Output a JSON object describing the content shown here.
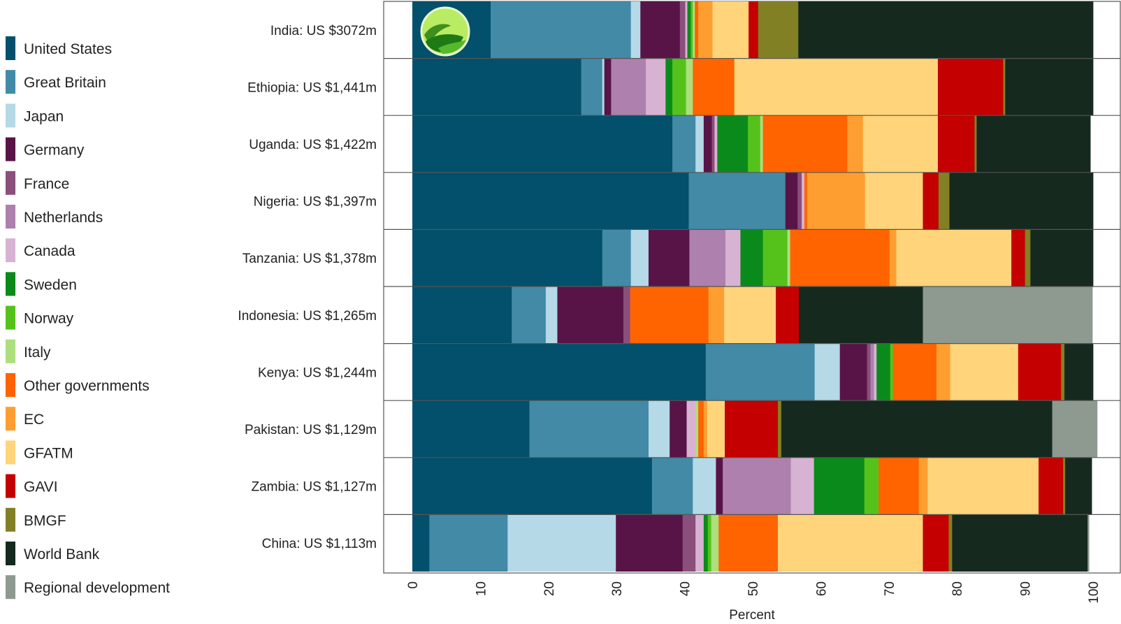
{
  "chart_data": {
    "type": "bar",
    "orientation": "horizontal",
    "stacked": true,
    "xlabel": "Percent",
    "xlim": [
      0,
      100
    ],
    "xticks": [
      "0",
      "10",
      "20",
      "30",
      "40",
      "50",
      "60",
      "70",
      "80",
      "90",
      "100"
    ],
    "legend_placement": "left",
    "legend": [
      {
        "name": "United States",
        "color": "#02506b"
      },
      {
        "name": "Great Britain",
        "color": "#428aa6"
      },
      {
        "name": "Japan",
        "color": "#b5d9e6"
      },
      {
        "name": "Germany",
        "color": "#581446"
      },
      {
        "name": "France",
        "color": "#8b4f7c"
      },
      {
        "name": "Netherlands",
        "color": "#ad80ad"
      },
      {
        "name": "Canada",
        "color": "#d8b2d2"
      },
      {
        "name": "Sweden",
        "color": "#0b8a1c"
      },
      {
        "name": "Norway",
        "color": "#55c21c"
      },
      {
        "name": "Italy",
        "color": "#acdf7d"
      },
      {
        "name": "Other governments",
        "color": "#ff6400"
      },
      {
        "name": "EC",
        "color": "#ff9e30"
      },
      {
        "name": "GFATM",
        "color": "#ffd47a"
      },
      {
        "name": "GAVI",
        "color": "#c40000"
      },
      {
        "name": "BMGF",
        "color": "#828024"
      },
      {
        "name": "World Bank",
        "color": "#16291e"
      },
      {
        "name": "Regional development",
        "color": "#8e9990"
      }
    ],
    "categories": [
      "India: US $3072m",
      "Ethiopia: US $1,441m",
      "Uganda: US $1,422m",
      "Nigeria: US $1,397m",
      "Tanzania: US $1,378m",
      "Indonesia: US $1,265m",
      "Kenya: US $1,244m",
      "Pakistan: US $1,129m",
      "Zambia: US $1,127m",
      "China: US $1,113m"
    ],
    "series": [
      {
        "name": "United States",
        "values": [
          11.5,
          24.8,
          38.2,
          40.6,
          27.9,
          14.6,
          43.1,
          17.2,
          35.2,
          2.5
        ]
      },
      {
        "name": "Great Britain",
        "values": [
          20.6,
          3.1,
          3.4,
          14.2,
          4.2,
          5.0,
          16.0,
          17.5,
          6.0,
          11.5
        ]
      },
      {
        "name": "Japan",
        "values": [
          1.4,
          0.3,
          1.2,
          0.0,
          2.6,
          1.7,
          3.7,
          3.1,
          3.4,
          15.9
        ]
      },
      {
        "name": "Germany",
        "values": [
          5.8,
          1.0,
          1.2,
          1.8,
          6.0,
          9.7,
          4.0,
          2.5,
          1.0,
          9.8
        ]
      },
      {
        "name": "France",
        "values": [
          0.8,
          0.0,
          0.4,
          0.6,
          0.0,
          1.0,
          0.5,
          0.0,
          0.0,
          1.9
        ]
      },
      {
        "name": "Netherlands",
        "values": [
          0.0,
          5.1,
          0.0,
          0.0,
          5.3,
          0.0,
          0.5,
          0.0,
          10.0,
          0.0
        ]
      },
      {
        "name": "Canada",
        "values": [
          0.3,
          2.9,
          0.4,
          0.4,
          2.2,
          0.0,
          0.4,
          1.3,
          3.4,
          1.2
        ]
      },
      {
        "name": "Sweden",
        "values": [
          0.5,
          1.0,
          4.5,
          0.0,
          3.3,
          0.0,
          2.0,
          0.0,
          7.4,
          0.6
        ]
      },
      {
        "name": "Norway",
        "values": [
          0.3,
          2.0,
          1.8,
          0.0,
          3.6,
          0.0,
          0.4,
          0.0,
          2.1,
          0.5
        ]
      },
      {
        "name": "Italy",
        "values": [
          0.3,
          1.0,
          0.4,
          0.0,
          0.4,
          0.0,
          0.0,
          0.4,
          0.0,
          1.1
        ]
      },
      {
        "name": "Other governments",
        "values": [
          0.5,
          6.1,
          12.4,
          0.4,
          14.6,
          11.5,
          6.4,
          0.8,
          5.9,
          8.7
        ]
      },
      {
        "name": "EC",
        "values": [
          2.1,
          0.0,
          2.3,
          8.5,
          1.0,
          2.3,
          2.0,
          0.5,
          1.3,
          0.0
        ]
      },
      {
        "name": "GFATM",
        "values": [
          5.3,
          29.9,
          11.0,
          8.5,
          16.9,
          7.6,
          10.0,
          2.6,
          16.3,
          21.3
        ]
      },
      {
        "name": "GAVI",
        "values": [
          1.4,
          9.6,
          5.4,
          2.3,
          2.0,
          3.4,
          6.3,
          7.8,
          3.6,
          3.8
        ]
      },
      {
        "name": "BMGF",
        "values": [
          5.9,
          0.3,
          0.3,
          1.6,
          0.8,
          0.0,
          0.5,
          0.5,
          0.3,
          0.5
        ]
      },
      {
        "name": "World Bank",
        "values": [
          43.3,
          12.9,
          16.7,
          21.1,
          9.2,
          18.2,
          4.2,
          39.8,
          3.9,
          19.9
        ]
      },
      {
        "name": "Regional development",
        "values": [
          0.0,
          0.0,
          0.0,
          0.0,
          0.0,
          24.9,
          0.0,
          6.6,
          0.0,
          0.2
        ]
      }
    ]
  }
}
